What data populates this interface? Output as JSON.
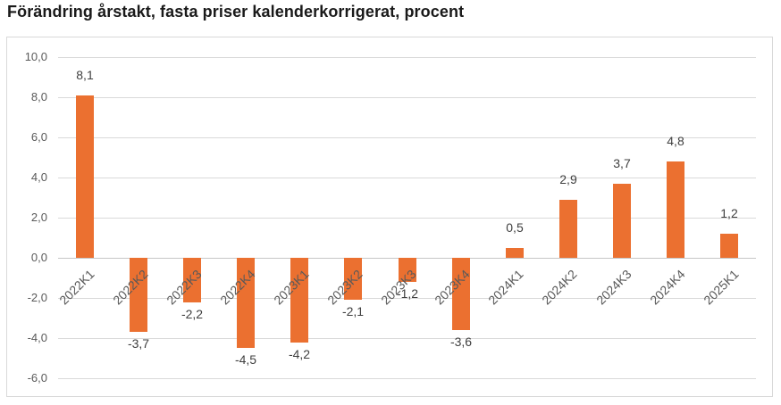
{
  "page_title": "Förändring årstakt, fasta priser kalenderkorrigerat, procent",
  "chart_data": {
    "type": "bar",
    "title": "Förändring årstakt, fasta priser kalenderkorrigerat, procent",
    "categories": [
      "2022K1",
      "2022K2",
      "2022K3",
      "2022K4",
      "2023K1",
      "2023K2",
      "2023K3",
      "2023K4",
      "2024K1",
      "2024K2",
      "2024K3",
      "2024K4",
      "2025K1"
    ],
    "values": [
      8.1,
      -3.7,
      -2.2,
      -4.5,
      -4.2,
      -2.1,
      -1.2,
      -3.6,
      0.5,
      2.9,
      3.7,
      4.8,
      1.2
    ],
    "value_labels": [
      "8,1",
      "-3,7",
      "-2,2",
      "-4,5",
      "-4,2",
      "-2,1",
      "-1,2",
      "-3,6",
      "0,5",
      "2,9",
      "3,7",
      "4,8",
      "1,2"
    ],
    "xlabel": "",
    "ylabel": "",
    "ylim": [
      -6,
      10
    ],
    "ytick_step": 2,
    "ytick_labels": [
      "10,0",
      "8,0",
      "6,0",
      "4,0",
      "2,0",
      "0,0",
      "-2,0",
      "-4,0",
      "-6,0"
    ],
    "decimal_separator": ",",
    "grid": true,
    "legend_position": "none",
    "category_label_rotation_deg": 45,
    "colors": {
      "bar": "#EB7030",
      "value_label": "#3F3F3F",
      "axis_text": "#595959",
      "gridline": "#D9D9D9",
      "axis_line": "#C6C6C6",
      "frame_border": "#D9D9D9",
      "title": "#1A1A1A",
      "background": "#FFFFFF"
    }
  }
}
